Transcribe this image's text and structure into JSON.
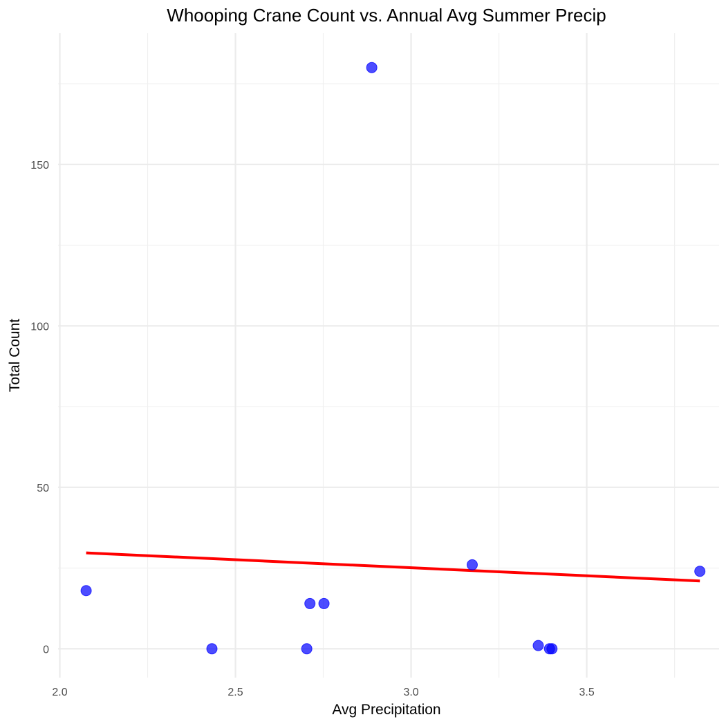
{
  "chart_data": {
    "type": "scatter",
    "title": "Whooping Crane Count vs. Annual Avg Summer Precip",
    "xlabel": "Avg Precipitation",
    "ylabel": "Total Count",
    "xlim": [
      2.0,
      3.86
    ],
    "ylim": [
      -8.5,
      190
    ],
    "x_ticks": [
      2.0,
      2.5,
      3.0,
      3.5
    ],
    "x_tick_labels": [
      "2.0",
      "2.5",
      "3.0",
      "3.5"
    ],
    "x_minor_ticks": [
      2.25,
      2.75,
      3.25,
      3.75
    ],
    "y_ticks": [
      0,
      50,
      100,
      150
    ],
    "y_tick_labels": [
      "0",
      "50",
      "100",
      "150"
    ],
    "y_minor_ticks": [
      25,
      75,
      125,
      175
    ],
    "grid": true,
    "legend": "none",
    "points": [
      {
        "x": 2.075,
        "y": 18
      },
      {
        "x": 2.433,
        "y": 0
      },
      {
        "x": 2.703,
        "y": 0
      },
      {
        "x": 2.712,
        "y": 14
      },
      {
        "x": 2.752,
        "y": 14
      },
      {
        "x": 2.888,
        "y": 180
      },
      {
        "x": 3.174,
        "y": 26
      },
      {
        "x": 3.362,
        "y": 1
      },
      {
        "x": 3.394,
        "y": 0
      },
      {
        "x": 3.401,
        "y": 0
      },
      {
        "x": 3.822,
        "y": 24
      }
    ],
    "trendline": {
      "type": "linear",
      "x": [
        2.075,
        3.822
      ],
      "y": [
        29.7,
        21.0
      ],
      "color": "#ff0000"
    },
    "point_color": "#0000ff",
    "point_opacity": 0.7
  }
}
